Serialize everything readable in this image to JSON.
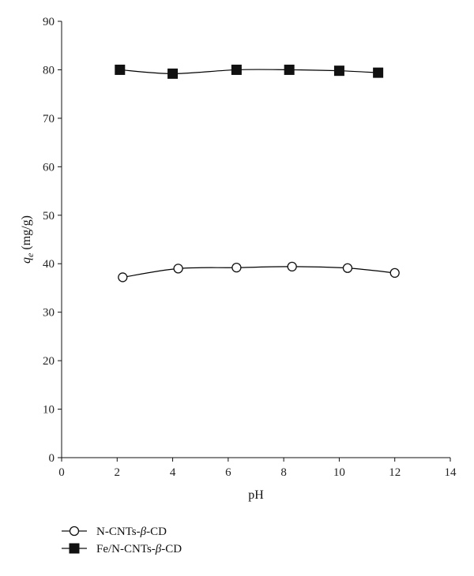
{
  "chart_data": {
    "type": "scatter",
    "xlabel": "pH",
    "ylabel_main": "q",
    "ylabel_sub": "e",
    "ylabel_unit": " (mg/g)",
    "xlim": [
      0,
      14
    ],
    "ylim": [
      0,
      90
    ],
    "xticks": [
      0,
      2,
      4,
      6,
      8,
      10,
      12,
      14
    ],
    "yticks": [
      0,
      10,
      20,
      30,
      40,
      50,
      60,
      70,
      80,
      90
    ],
    "grid": false,
    "legend_position": "bottom-left",
    "series": [
      {
        "name": "N-CNTs-β-CD",
        "marker": "open-circle",
        "color": "#000000",
        "smooth_line": true,
        "x": [
          2.2,
          4.2,
          6.3,
          8.3,
          10.3,
          12.0
        ],
        "y": [
          37.2,
          39.0,
          39.2,
          39.4,
          39.1,
          38.1
        ]
      },
      {
        "name": "Fe/N-CNTs-β-CD",
        "marker": "filled-square",
        "color": "#000000",
        "smooth_line": true,
        "x": [
          2.1,
          4.0,
          6.3,
          8.2,
          10.0,
          11.4
        ],
        "y": [
          80.0,
          79.2,
          80.0,
          80.0,
          79.8,
          79.4
        ]
      }
    ]
  }
}
